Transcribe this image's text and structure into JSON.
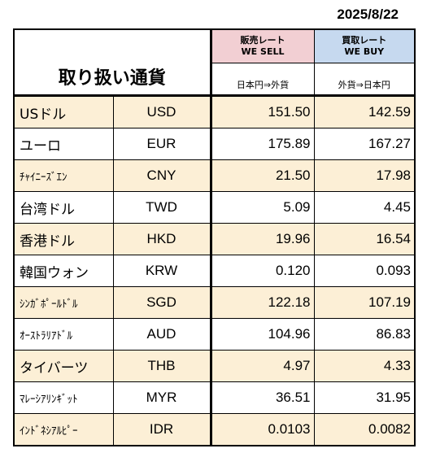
{
  "date": "2025/8/22",
  "header": {
    "title": "取り扱い通貨",
    "sell_label_jp": "販売レート",
    "sell_label_en": "WE SELL",
    "sell_direction": "日本円⇒外貨",
    "buy_label_jp": "買取レート",
    "buy_label_en": "WE BUY",
    "buy_direction": "外貨⇒日本円"
  },
  "colors": {
    "sell_header": "#f2cfd3",
    "buy_header": "#c6d9ef",
    "alt_row": "#fcefd6"
  },
  "rows": [
    {
      "name": "USドル",
      "code": "USD",
      "sell": "151.50",
      "buy": "142.59"
    },
    {
      "name": "ユーロ",
      "code": "EUR",
      "sell": "175.89",
      "buy": "167.27"
    },
    {
      "name": "ﾁｬｲﾆｰｽﾞｴﾝ",
      "code": "CNY",
      "sell": "21.50",
      "buy": "17.98"
    },
    {
      "name": "台湾ドル",
      "code": "TWD",
      "sell": "5.09",
      "buy": "4.45"
    },
    {
      "name": "香港ドル",
      "code": "HKD",
      "sell": "19.96",
      "buy": "16.54"
    },
    {
      "name": "韓国ウォン",
      "code": "KRW",
      "sell": "0.120",
      "buy": "0.093"
    },
    {
      "name": "ｼﾝｶﾞﾎﾟｰﾙﾄﾞﾙ",
      "code": "SGD",
      "sell": "122.18",
      "buy": "107.19"
    },
    {
      "name": "ｵｰｽﾄﾗﾘｱﾄﾞﾙ",
      "code": "AUD",
      "sell": "104.96",
      "buy": "86.83"
    },
    {
      "name": "タイバーツ",
      "code": "THB",
      "sell": "4.97",
      "buy": "4.33"
    },
    {
      "name": "ﾏﾚｰｼｱﾘﾝｷﾞｯﾄ",
      "code": "MYR",
      "sell": "36.51",
      "buy": "31.95"
    },
    {
      "name": "ｲﾝﾄﾞﾈｼｱﾙﾋﾟｰ",
      "code": "IDR",
      "sell": "0.0103",
      "buy": "0.0082"
    }
  ]
}
